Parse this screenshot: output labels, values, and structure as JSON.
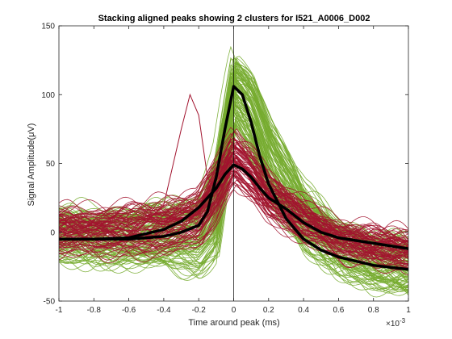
{
  "chart_data": {
    "type": "line",
    "title": "Stacking aligned peaks showing 2 clusters for I521_A0006_D002",
    "xlabel": "Time around peak (ms)",
    "ylabel": "Signal Amplitude(μV)",
    "x_exponent_label": "×10",
    "x_exponent_power": "-3",
    "xlim": [
      -0.001,
      0.001
    ],
    "ylim": [
      -50,
      150
    ],
    "x_tick_values": [
      -0.001,
      -0.0008,
      -0.0006,
      -0.0004,
      -0.0002,
      0,
      0.0002,
      0.0004,
      0.0006,
      0.0008,
      0.001
    ],
    "x_tick_labels": [
      "-1",
      "-0.8",
      "-0.6",
      "-0.4",
      "-0.2",
      "0",
      "0.2",
      "0.4",
      "0.6",
      "0.8",
      "1"
    ],
    "y_tick_values": [
      -50,
      0,
      50,
      100,
      150
    ],
    "y_tick_labels": [
      "-50",
      "0",
      "50",
      "100",
      "150"
    ],
    "grid": false,
    "vertical_marker_x": 0,
    "colors": {
      "cluster_1": "#77ac30",
      "cluster_2": "#a2142f",
      "mean": "#000000",
      "axes": "#262626"
    },
    "mean_traces": [
      {
        "cluster": 1,
        "x": [
          -0.001,
          -0.0008,
          -0.0006,
          -0.0004,
          -0.0003,
          -0.0002,
          -0.00015,
          -0.0001,
          -5e-05,
          0,
          5e-05,
          0.0001,
          0.00015,
          0.0002,
          0.0003,
          0.0004,
          0.0005,
          0.0006,
          0.0008,
          0.001
        ],
        "y": [
          -5,
          -5,
          -5,
          -3,
          0,
          5,
          15,
          40,
          75,
          106,
          100,
          80,
          55,
          35,
          10,
          -5,
          -13,
          -18,
          -24,
          -27
        ]
      },
      {
        "cluster": 2,
        "x": [
          -0.001,
          -0.0008,
          -0.0006,
          -0.0004,
          -0.0003,
          -0.0002,
          -0.0001,
          -5e-05,
          0,
          5e-05,
          0.0001,
          0.00015,
          0.0002,
          0.0003,
          0.0004,
          0.0005,
          0.0006,
          0.0008,
          0.001
        ],
        "y": [
          -5,
          -5,
          -4,
          2,
          8,
          18,
          32,
          42,
          49,
          46,
          40,
          32,
          25,
          17,
          7,
          0,
          -4,
          -8,
          -12
        ]
      }
    ],
    "notable_trace": {
      "cluster": 2,
      "x": [
        -0.001,
        -0.0006,
        -0.0004,
        -0.0003,
        -0.00025,
        -0.0002,
        -0.00015,
        -0.0001,
        0,
        0.0002,
        0.0006,
        0.001
      ],
      "y": [
        -5,
        -4,
        20,
        75,
        100,
        85,
        40,
        30,
        45,
        20,
        -5,
        -12
      ]
    },
    "cluster_1_band": {
      "x": [
        -0.001,
        -0.0004,
        -0.0002,
        -0.0001,
        0,
        0.0001,
        0.0002,
        0.0004,
        0.0006,
        0.0008,
        0.001
      ],
      "low": [
        -25,
        -30,
        -40,
        -30,
        70,
        50,
        10,
        -20,
        -35,
        -45,
        -50
      ],
      "high": [
        20,
        25,
        35,
        70,
        140,
        125,
        95,
        40,
        15,
        5,
        0
      ]
    },
    "cluster_2_band": {
      "x": [
        -0.001,
        -0.0004,
        -0.0002,
        -0.0001,
        0,
        0.0001,
        0.0002,
        0.0004,
        0.0006,
        0.0008,
        0.001
      ],
      "low": [
        -20,
        -20,
        -15,
        0,
        30,
        20,
        5,
        -10,
        -20,
        -25,
        -30
      ],
      "high": [
        20,
        25,
        35,
        60,
        80,
        65,
        45,
        25,
        10,
        5,
        0
      ]
    }
  }
}
